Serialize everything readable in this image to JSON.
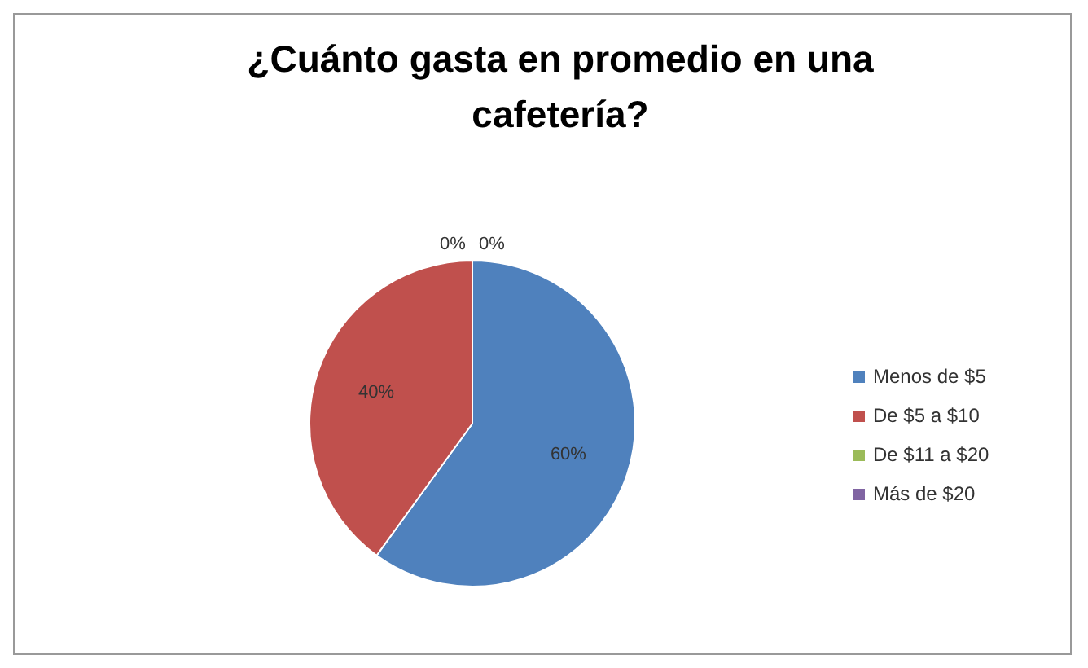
{
  "chart_data": {
    "type": "pie",
    "title": "¿Cuánto gasta en promedio en una cafetería?",
    "categories": [
      "Menos de $5",
      "De $5 a $10",
      "De $11 a $20",
      "Más de $20"
    ],
    "values": [
      60,
      40,
      0,
      0
    ],
    "colors": [
      "#4f81bd",
      "#c0504d",
      "#9bbb59",
      "#8064a2"
    ],
    "value_labels": [
      "60%",
      "40%",
      "0%",
      "0%"
    ],
    "data_labels": true,
    "legend": "right"
  }
}
